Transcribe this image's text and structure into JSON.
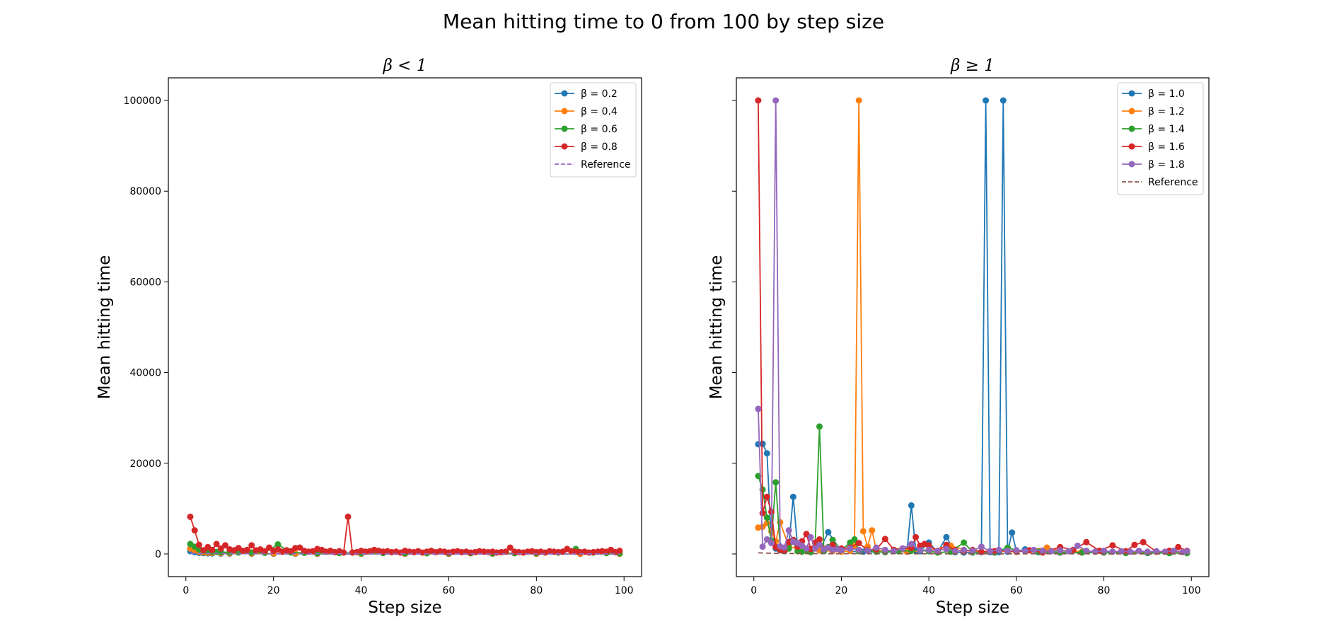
{
  "suptitle": "Mean hitting time to 0 from 100 by step size",
  "chart_data": [
    {
      "type": "line",
      "title": "β < 1",
      "xlabel": "Step size",
      "ylabel": "Mean hitting time",
      "xlim": [
        -4,
        104
      ],
      "ylim": [
        -5000,
        105000
      ],
      "xticks": [
        0,
        20,
        40,
        60,
        80,
        100
      ],
      "yticks": [
        0,
        20000,
        40000,
        60000,
        80000,
        100000
      ],
      "grid": false,
      "legend_position": "top-right",
      "series": [
        {
          "name": "β = 0.2",
          "color": "#1f77b4",
          "marker": true,
          "dashed": false,
          "x": [
            1,
            2,
            3,
            4,
            5,
            6,
            8,
            10,
            15,
            20,
            25,
            30,
            40,
            50,
            60,
            70,
            80,
            90,
            99
          ],
          "y": [
            600,
            400,
            250,
            180,
            140,
            110,
            90,
            70,
            50,
            40,
            35,
            30,
            30,
            25,
            25,
            20,
            20,
            20,
            20
          ]
        },
        {
          "name": "β = 0.4",
          "color": "#ff7f0e",
          "marker": true,
          "dashed": false,
          "x": [
            1,
            2,
            3,
            4,
            5,
            6,
            8,
            10,
            15,
            20,
            25,
            30,
            40,
            50,
            60,
            70,
            80,
            90,
            99
          ],
          "y": [
            1200,
            800,
            500,
            350,
            280,
            220,
            180,
            150,
            120,
            100,
            90,
            80,
            70,
            60,
            60,
            55,
            50,
            50,
            50
          ]
        },
        {
          "name": "β = 0.6",
          "color": "#2ca02c",
          "marker": true,
          "dashed": false,
          "x": [
            1,
            2,
            3,
            4,
            5,
            6,
            7,
            8,
            10,
            12,
            15,
            18,
            21,
            24,
            27,
            30,
            35,
            40,
            45,
            50,
            55,
            60,
            65,
            70,
            75,
            80,
            85,
            89,
            93,
            96,
            99
          ],
          "y": [
            2200,
            1600,
            1000,
            700,
            600,
            500,
            450,
            400,
            350,
            300,
            300,
            250,
            2100,
            300,
            250,
            200,
            200,
            200,
            200,
            150,
            150,
            150,
            150,
            150,
            150,
            200,
            300,
            1100,
            300,
            200,
            150
          ]
        },
        {
          "name": "β = 0.8",
          "color": "#d62728",
          "marker": true,
          "dashed": false,
          "x": [
            1,
            2,
            3,
            4,
            5,
            6,
            7,
            8,
            9,
            10,
            11,
            12,
            13,
            14,
            15,
            16,
            17,
            18,
            19,
            20,
            21,
            22,
            23,
            24,
            25,
            26,
            27,
            28,
            29,
            30,
            31,
            32,
            33,
            34,
            35,
            36,
            37,
            38,
            39,
            40,
            41,
            42,
            43,
            44,
            45,
            46,
            47,
            48,
            49,
            50,
            51,
            52,
            53,
            54,
            55,
            56,
            57,
            58,
            59,
            60,
            61,
            62,
            63,
            64,
            65,
            66,
            67,
            68,
            69,
            70,
            71,
            72,
            73,
            74,
            75,
            76,
            77,
            78,
            79,
            80,
            81,
            82,
            83,
            84,
            85,
            86,
            87,
            88,
            89,
            90,
            91,
            92,
            93,
            94,
            95,
            96,
            97,
            98,
            99
          ],
          "y": [
            8200,
            5200,
            2000,
            800,
            1500,
            900,
            2200,
            1200,
            1900,
            1000,
            800,
            1300,
            700,
            900,
            1900,
            800,
            1000,
            600,
            1400,
            700,
            1000,
            500,
            800,
            600,
            1300,
            1400,
            700,
            500,
            600,
            1100,
            900,
            500,
            700,
            400,
            600,
            300,
            8200,
            300,
            400,
            700,
            500,
            600,
            900,
            700,
            500,
            600,
            400,
            500,
            300,
            700,
            500,
            400,
            600,
            300,
            500,
            700,
            400,
            600,
            500,
            300,
            500,
            600,
            400,
            500,
            300,
            400,
            600,
            500,
            400,
            500,
            300,
            400,
            500,
            1400,
            500,
            400,
            300,
            500,
            600,
            400,
            500,
            300,
            600,
            500,
            400,
            500,
            1100,
            600,
            500,
            400,
            500,
            300,
            400,
            500,
            600,
            500,
            900,
            400,
            700
          ]
        },
        {
          "name": "Reference",
          "color": "#9467bd",
          "marker": false,
          "dashed": true,
          "x": [
            1,
            10,
            20,
            30,
            40,
            50,
            60,
            70,
            80,
            90,
            99
          ],
          "y": [
            150,
            60,
            40,
            30,
            25,
            20,
            20,
            15,
            15,
            15,
            15
          ]
        }
      ]
    },
    {
      "type": "line",
      "title": "β ≥ 1",
      "xlabel": "Step size",
      "ylabel": "Mean hitting time",
      "xlim": [
        -4,
        104
      ],
      "ylim": [
        -5000,
        105000
      ],
      "xticks": [
        0,
        20,
        40,
        60,
        80,
        100
      ],
      "yticks": [
        0,
        20000,
        40000,
        60000,
        80000,
        100000
      ],
      "show_ytick_labels": false,
      "grid": false,
      "legend_position": "top-right",
      "series": [
        {
          "name": "β = 1.0",
          "color": "#1f77b4",
          "marker": true,
          "dashed": false,
          "x": [
            1,
            2,
            3,
            4,
            5,
            6,
            7,
            8,
            9,
            10,
            12,
            15,
            17,
            20,
            25,
            30,
            35,
            36,
            37,
            38,
            40,
            42,
            44,
            46,
            48,
            50,
            52,
            53,
            54,
            55,
            56,
            57,
            58,
            59,
            60,
            62,
            65,
            70,
            75,
            80,
            85,
            90,
            95,
            99
          ],
          "y": [
            24200,
            24300,
            22200,
            2500,
            1200,
            800,
            600,
            1800,
            12600,
            1500,
            900,
            800,
            4800,
            600,
            500,
            400,
            500,
            10700,
            800,
            600,
            2500,
            400,
            3700,
            400,
            300,
            300,
            400,
            100000,
            400,
            300,
            400,
            100000,
            500,
            4700,
            600,
            1000,
            400,
            300,
            300,
            300,
            300,
            200,
            200,
            200
          ]
        },
        {
          "name": "β = 1.2",
          "color": "#ff7f0e",
          "marker": true,
          "dashed": false,
          "x": [
            1,
            2,
            3,
            4,
            5,
            6,
            8,
            10,
            12,
            15,
            18,
            20,
            22,
            23,
            24,
            25,
            26,
            27,
            28,
            30,
            35,
            40,
            45,
            50,
            55,
            60,
            67,
            70,
            75,
            80,
            85,
            90,
            95,
            99
          ],
          "y": [
            5800,
            6000,
            6800,
            5000,
            2800,
            7000,
            1600,
            1200,
            900,
            800,
            600,
            500,
            700,
            1800,
            100000,
            5000,
            1600,
            5200,
            800,
            600,
            500,
            800,
            1800,
            400,
            600,
            500,
            1400,
            800,
            500,
            400,
            400,
            300,
            300,
            300
          ]
        },
        {
          "name": "β = 1.4",
          "color": "#2ca02c",
          "marker": true,
          "dashed": false,
          "x": [
            1,
            2,
            3,
            4,
            5,
            6,
            7,
            8,
            9,
            10,
            11,
            12,
            13,
            14,
            15,
            16,
            17,
            18,
            20,
            22,
            23,
            24,
            26,
            28,
            30,
            33,
            36,
            38,
            40,
            42,
            45,
            48,
            50,
            55,
            58,
            60,
            65,
            70,
            75,
            80,
            85,
            90,
            95,
            99
          ],
          "y": [
            17200,
            14200,
            8000,
            3000,
            15800,
            1500,
            800,
            1200,
            2800,
            600,
            500,
            900,
            400,
            1400,
            28100,
            600,
            1500,
            3100,
            800,
            2500,
            3200,
            600,
            800,
            500,
            400,
            600,
            700,
            800,
            600,
            300,
            500,
            2500,
            400,
            300,
            1400,
            800,
            500,
            400,
            300,
            400,
            200,
            300,
            200,
            200
          ]
        },
        {
          "name": "β = 1.6",
          "color": "#d62728",
          "marker": true,
          "dashed": false,
          "x": [
            1,
            2,
            3,
            4,
            5,
            6,
            7,
            8,
            9,
            10,
            11,
            12,
            13,
            14,
            15,
            16,
            18,
            20,
            22,
            24,
            26,
            28,
            30,
            32,
            34,
            36,
            37,
            38,
            39,
            40,
            42,
            44,
            46,
            48,
            50,
            52,
            55,
            58,
            60,
            63,
            66,
            70,
            73,
            76,
            79,
            82,
            85,
            87,
            89,
            92,
            95,
            97,
            99
          ],
          "y": [
            100000,
            9000,
            12600,
            9300,
            1500,
            900,
            700,
            2600,
            3100,
            1600,
            2800,
            4400,
            1100,
            2500,
            3200,
            1100,
            2000,
            1200,
            1400,
            2400,
            800,
            1000,
            3300,
            900,
            1200,
            1300,
            3700,
            1800,
            2200,
            1900,
            600,
            2000,
            800,
            600,
            900,
            500,
            600,
            700,
            500,
            800,
            300,
            1500,
            900,
            2600,
            700,
            1900,
            600,
            2000,
            2600,
            500,
            700,
            1500,
            700
          ]
        },
        {
          "name": "β = 1.8",
          "color": "#9467bd",
          "marker": true,
          "dashed": false,
          "x": [
            1,
            2,
            3,
            4,
            5,
            6,
            7,
            8,
            9,
            10,
            11,
            12,
            13,
            14,
            15,
            16,
            17,
            18,
            19,
            20,
            22,
            24,
            26,
            28,
            30,
            32,
            34,
            36,
            38,
            40,
            42,
            44,
            46,
            48,
            50,
            52,
            54,
            56,
            58,
            60,
            62,
            64,
            66,
            68,
            70,
            72,
            74,
            76,
            78,
            80,
            82,
            84,
            86,
            88,
            90,
            92,
            94,
            96,
            98,
            99
          ],
          "y": [
            32000,
            1600,
            3200,
            2400,
            100000,
            1700,
            1400,
            5200,
            2700,
            2400,
            1800,
            1200,
            3700,
            1200,
            2000,
            1000,
            1400,
            900,
            1100,
            800,
            1200,
            900,
            700,
            1400,
            900,
            600,
            1200,
            2200,
            800,
            900,
            700,
            1100,
            600,
            900,
            700,
            1600,
            600,
            900,
            700,
            800,
            600,
            900,
            700,
            600,
            800,
            600,
            1800,
            700,
            500,
            700,
            500,
            600,
            500,
            700,
            500,
            600,
            500,
            700,
            400,
            600
          ]
        },
        {
          "name": "Reference",
          "color": "#8c564b",
          "marker": false,
          "dashed": true,
          "x": [
            1,
            5,
            10,
            20,
            30,
            40,
            50,
            60,
            70,
            80,
            90,
            99
          ],
          "y": [
            250,
            120,
            90,
            60,
            50,
            45,
            40,
            35,
            35,
            30,
            30,
            30
          ]
        }
      ]
    }
  ]
}
